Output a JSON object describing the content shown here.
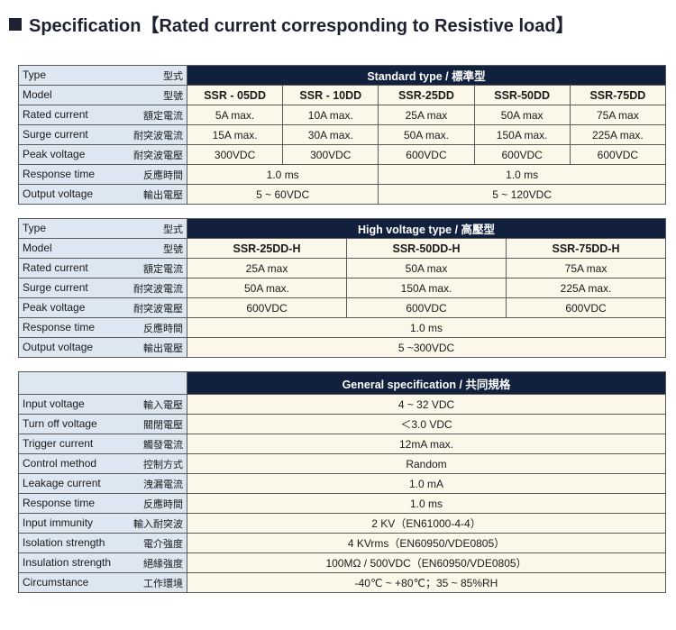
{
  "title": "Specification【Rated current corresponding to Resistive load】",
  "tables": [
    {
      "type_en": "Type",
      "type_zh": "型式",
      "header": "Standard type / 標準型",
      "rows": [
        {
          "en": "Model",
          "zh": "型號",
          "cells": [
            "SSR - 05DD",
            "SSR - 10DD",
            "SSR-25DD",
            "SSR-50DD",
            "SSR-75DD"
          ]
        },
        {
          "en": "Rated current",
          "zh": "額定電流",
          "cells": [
            "5A max.",
            "10A max.",
            "25A max",
            "50A max",
            "75A max"
          ]
        },
        {
          "en": "Surge current",
          "zh": "耐突波電流",
          "cells": [
            "15A max.",
            "30A max.",
            "50A max.",
            "150A max.",
            "225A max."
          ]
        },
        {
          "en": "Peak voltage",
          "zh": "耐突波電壓",
          "cells": [
            "300VDC",
            "300VDC",
            "600VDC",
            "600VDC",
            "600VDC"
          ]
        },
        {
          "en": "Response time",
          "zh": "反應時間",
          "cells": [
            "1.0 ms",
            "1.0 ms"
          ]
        },
        {
          "en": "Output voltage",
          "zh": "輸出電壓",
          "cells": [
            "5 ~ 60VDC",
            "5 ~ 120VDC"
          ]
        }
      ]
    },
    {
      "type_en": "Type",
      "type_zh": "型式",
      "header": "High voltage type / 高壓型",
      "rows": [
        {
          "en": "Model",
          "zh": "型號",
          "cells": [
            "SSR-25DD-H",
            "SSR-50DD-H",
            "SSR-75DD-H"
          ]
        },
        {
          "en": "Rated current",
          "zh": "額定電流",
          "cells": [
            "25A max",
            "50A max",
            "75A max"
          ]
        },
        {
          "en": "Surge current",
          "zh": "耐突波電流",
          "cells": [
            "50A max.",
            "150A max.",
            "225A max."
          ]
        },
        {
          "en": "Peak voltage",
          "zh": "耐突波電壓",
          "cells": [
            "600VDC",
            "600VDC",
            "600VDC"
          ]
        },
        {
          "en": "Response time",
          "zh": "反應時間",
          "cells": [
            "1.0 ms"
          ]
        },
        {
          "en": "Output voltage",
          "zh": "輸出電壓",
          "cells": [
            "5 ~300VDC"
          ]
        }
      ]
    },
    {
      "header": "General specification / 共同規格",
      "rows": [
        {
          "en": "Input voltage",
          "zh": "輸入電壓",
          "cells": [
            "4 ~ 32 VDC"
          ]
        },
        {
          "en": "Turn off voltage",
          "zh": "關閉電壓",
          "cells": [
            "＜3.0 VDC"
          ]
        },
        {
          "en": "Trigger current",
          "zh": "觸發電流",
          "cells": [
            "12mA max."
          ]
        },
        {
          "en": "Control method",
          "zh": "控制方式",
          "cells": [
            "Random"
          ]
        },
        {
          "en": "Leakage current",
          "zh": "洩漏電流",
          "cells": [
            "1.0 mA"
          ]
        },
        {
          "en": "Response time",
          "zh": "反應時間",
          "cells": [
            "1.0 ms"
          ]
        },
        {
          "en": "Input immunity",
          "zh": "輸入耐突波",
          "cells": [
            "2 KV（EN61000-4-4）"
          ]
        },
        {
          "en": "Isolation strength",
          "zh": "電介強度",
          "cells": [
            "4 KVrms（EN60950/VDE0805）"
          ]
        },
        {
          "en": "Insulation strength",
          "zh": "絕緣強度",
          "cells": [
            "100MΩ / 500VDC（EN60950/VDE0805）"
          ]
        },
        {
          "en": "Circumstance",
          "zh": "工作環境",
          "cells": [
            "-40℃ ~ +80℃；35 ~ 85%RH"
          ]
        }
      ]
    }
  ]
}
